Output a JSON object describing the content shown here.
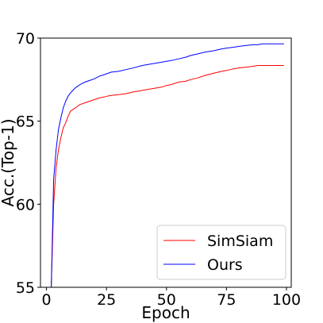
{
  "chart_data": {
    "type": "line",
    "title": "",
    "xlabel": "Epoch",
    "ylabel": "Acc.(Top-1)",
    "xlim": [
      -2.5,
      102
    ],
    "ylim": [
      55,
      70
    ],
    "xticks": [
      0,
      25,
      50,
      75,
      100
    ],
    "yticks": [
      55,
      60,
      65,
      70
    ],
    "grid": false,
    "legend_position": "bottom-right",
    "series": [
      {
        "name": "SimSiam",
        "color": "#ff0000",
        "x": [
          2,
          3,
          4,
          5,
          6,
          7,
          8,
          9,
          10,
          12,
          14,
          16,
          18,
          20,
          22,
          24,
          25,
          27,
          30,
          33,
          36,
          40,
          44,
          48,
          50,
          52,
          55,
          58,
          60,
          63,
          66,
          70,
          73,
          75,
          78,
          80,
          83,
          86,
          88,
          90,
          93,
          96,
          99
        ],
        "y": [
          55.0,
          60.0,
          62.2,
          63.3,
          64.0,
          64.6,
          64.9,
          65.3,
          65.6,
          65.8,
          66.0,
          66.1,
          66.2,
          66.3,
          66.4,
          66.45,
          66.5,
          66.55,
          66.6,
          66.65,
          66.75,
          66.85,
          66.95,
          67.05,
          67.15,
          67.2,
          67.35,
          67.4,
          67.5,
          67.6,
          67.75,
          67.9,
          68.0,
          68.05,
          68.15,
          68.2,
          68.25,
          68.3,
          68.35,
          68.35,
          68.35,
          68.35,
          68.35
        ]
      },
      {
        "name": "Ours",
        "color": "#0000ff",
        "x": [
          2,
          3,
          4,
          5,
          6,
          7,
          8,
          9,
          10,
          12,
          14,
          16,
          18,
          20,
          22,
          24,
          25,
          27,
          30,
          33,
          36,
          40,
          44,
          48,
          50,
          52,
          55,
          58,
          60,
          63,
          66,
          70,
          73,
          75,
          78,
          80,
          83,
          86,
          88,
          90,
          93,
          96,
          99
        ],
        "y": [
          55.0,
          61.5,
          63.3,
          64.5,
          65.2,
          65.8,
          66.2,
          66.5,
          66.7,
          67.0,
          67.2,
          67.35,
          67.45,
          67.55,
          67.7,
          67.8,
          67.85,
          67.95,
          68.0,
          68.1,
          68.2,
          68.35,
          68.45,
          68.55,
          68.6,
          68.65,
          68.75,
          68.85,
          68.95,
          69.05,
          69.15,
          69.25,
          69.35,
          69.4,
          69.45,
          69.5,
          69.55,
          69.6,
          69.6,
          69.65,
          69.65,
          69.65,
          69.65
        ]
      }
    ]
  }
}
